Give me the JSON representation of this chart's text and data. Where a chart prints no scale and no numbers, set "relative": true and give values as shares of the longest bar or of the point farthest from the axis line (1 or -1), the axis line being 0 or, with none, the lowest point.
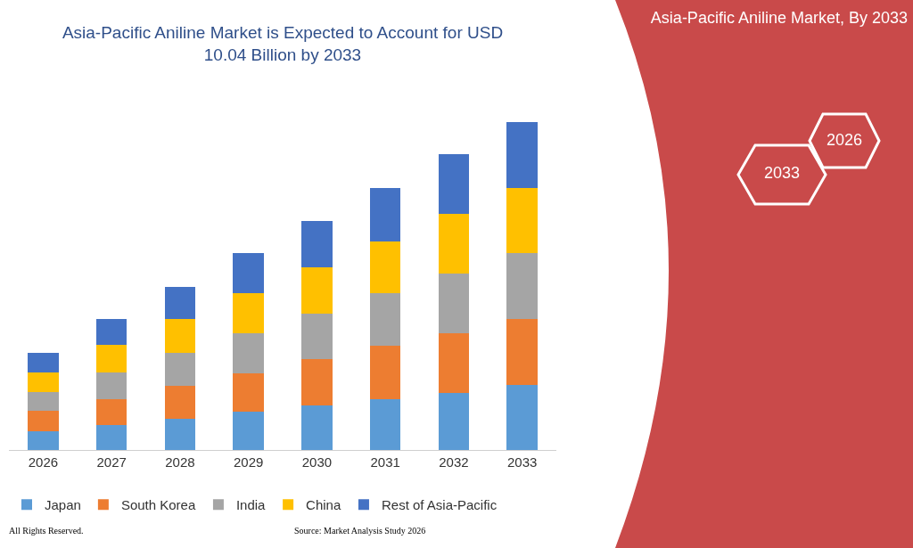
{
  "chart_data": {
    "type": "bar",
    "title": "Asia-Pacific Aniline Market is Expected to Account for USD 10.04 Billion by 2033",
    "categories": [
      "2026",
      "2027",
      "2028",
      "2029",
      "2030",
      "2031",
      "2032",
      "2033"
    ],
    "stacked": true,
    "relative": true,
    "grid": false,
    "legend": "bottom",
    "series": [
      {
        "name": "Japan",
        "color": "#5b9bd5",
        "values": [
          0.056,
          0.076,
          0.096,
          0.116,
          0.135,
          0.155,
          0.175,
          0.199
        ]
      },
      {
        "name": "South Korea",
        "color": "#ed7d31",
        "values": [
          0.063,
          0.079,
          0.099,
          0.119,
          0.142,
          0.162,
          0.182,
          0.201
        ]
      },
      {
        "name": "India",
        "color": "#a5a5a5",
        "values": [
          0.059,
          0.083,
          0.102,
          0.122,
          0.139,
          0.162,
          0.182,
          0.201
        ]
      },
      {
        "name": "China",
        "color": "#ffc000",
        "values": [
          0.059,
          0.083,
          0.102,
          0.122,
          0.142,
          0.158,
          0.182,
          0.198
        ]
      },
      {
        "name": "Rest of Asia-Pacific",
        "color": "#4472c4",
        "values": [
          0.059,
          0.079,
          0.099,
          0.122,
          0.142,
          0.162,
          0.182,
          0.201
        ]
      }
    ],
    "annotations": [
      "Asia-Pacific Aniline Market, By 2033",
      "2026",
      "2033",
      "All Rights Reserved.",
      "Source: Market Analysis Study 2026"
    ]
  }
}
